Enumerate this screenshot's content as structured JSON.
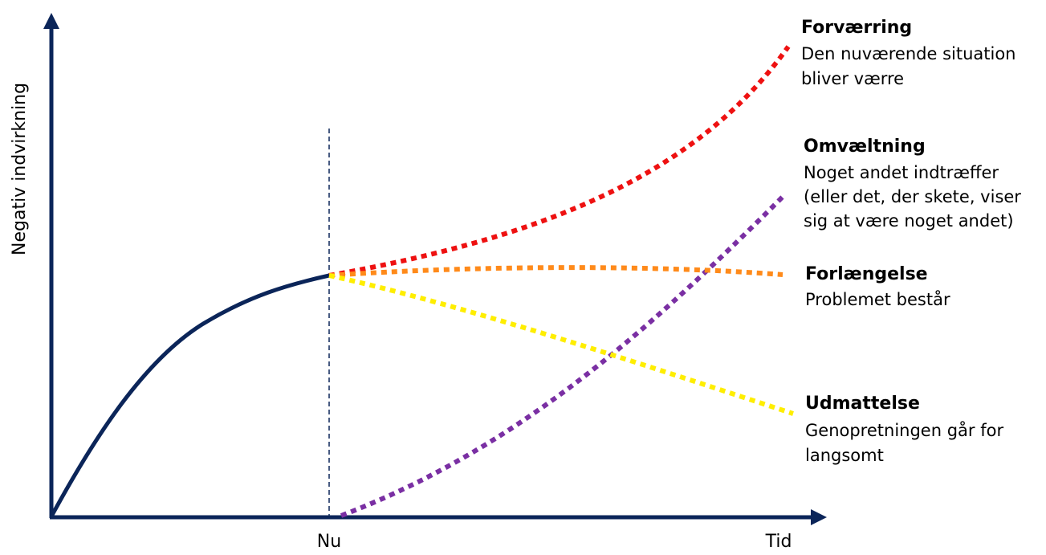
{
  "axes": {
    "y_label": "Negativ indvirkning",
    "x_tick_now": "Nu",
    "x_tick_time": "Tid"
  },
  "colors": {
    "axis": "#0b2559",
    "history": "#0b2559",
    "forvaerring": "#ee1111",
    "omvaeltning": "#7a2fa3",
    "forlaengelse": "#ff8a1a",
    "udmattelse": "#ffee00"
  },
  "scenarios": [
    {
      "key": "forvaerring",
      "title": "Forværring",
      "lines": [
        "Den nuværende situation",
        "bliver værre"
      ]
    },
    {
      "key": "omvaeltning",
      "title": "Omvæltning",
      "lines": [
        "Noget andet indtræffer",
        "(eller det, der skete, viser",
        "sig at være noget andet)"
      ]
    },
    {
      "key": "forlaengelse",
      "title": "Forlængelse",
      "lines": [
        "Problemet består"
      ]
    },
    {
      "key": "udmattelse",
      "title": "Udmattelse",
      "lines": [
        "Genopretningen går for",
        "langsomt"
      ]
    }
  ]
}
